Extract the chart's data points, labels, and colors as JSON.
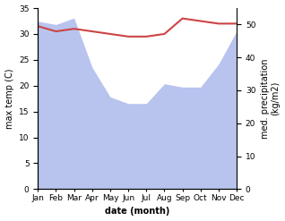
{
  "months": [
    "Jan",
    "Feb",
    "Mar",
    "Apr",
    "May",
    "Jun",
    "Jul",
    "Aug",
    "Sep",
    "Oct",
    "Nov",
    "Dec"
  ],
  "month_indices": [
    1,
    2,
    3,
    4,
    5,
    6,
    7,
    8,
    9,
    10,
    11,
    12
  ],
  "temperature": [
    31.5,
    30.5,
    31.0,
    30.5,
    30.0,
    29.5,
    29.5,
    30.0,
    33.0,
    32.5,
    32.0,
    32.0
  ],
  "precipitation": [
    51,
    50,
    52,
    37,
    28,
    26,
    26,
    32,
    31,
    31,
    38,
    48
  ],
  "temp_color": "#cc4444",
  "precip_fill_color": "#b8c4ee",
  "precip_line_color": "#99aadd",
  "xlabel": "date (month)",
  "ylabel_left": "max temp (C)",
  "ylabel_right": "med. precipitation\n(kg/m2)",
  "ylim_left": [
    0,
    35
  ],
  "ylim_right": [
    0,
    55
  ],
  "yticks_left": [
    0,
    5,
    10,
    15,
    20,
    25,
    30,
    35
  ],
  "yticks_right": [
    0,
    10,
    20,
    30,
    40,
    50
  ],
  "temp_linewidth": 1.5,
  "fig_width": 3.18,
  "fig_height": 2.47,
  "dpi": 100
}
